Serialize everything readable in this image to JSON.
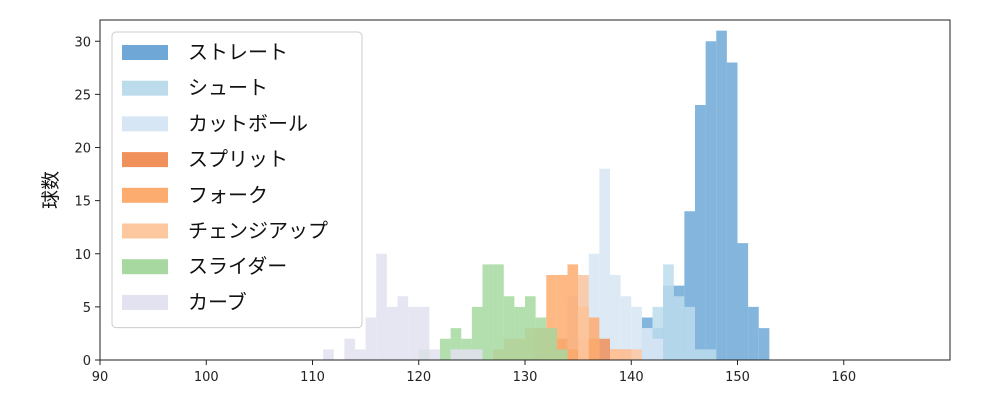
{
  "chart_data": {
    "type": "bar",
    "subtype": "overlapping-histogram",
    "title": "",
    "xlabel": "",
    "ylabel": "球数",
    "xlim": [
      90,
      170
    ],
    "ylim": [
      0,
      32
    ],
    "x_ticks": [
      90,
      100,
      110,
      120,
      130,
      140,
      150,
      160
    ],
    "y_ticks": [
      0,
      5,
      10,
      15,
      20,
      25,
      30
    ],
    "grid": false,
    "legend_position": "top-left",
    "bin_width": 1,
    "series": [
      {
        "name": "ストレート",
        "color": "#6fa8d6",
        "bins": [
          [
            141,
            4
          ],
          [
            142,
            3
          ],
          [
            143,
            7
          ],
          [
            144,
            7
          ],
          [
            145,
            14
          ],
          [
            146,
            24
          ],
          [
            147,
            30
          ],
          [
            148,
            31
          ],
          [
            149,
            28
          ],
          [
            150,
            11
          ],
          [
            151,
            5
          ],
          [
            152,
            3
          ]
        ]
      },
      {
        "name": "シュート",
        "color": "#bcdcec",
        "bins": [
          [
            137,
            2
          ],
          [
            138,
            1
          ],
          [
            141,
            3
          ],
          [
            142,
            5
          ],
          [
            143,
            9
          ],
          [
            144,
            6
          ],
          [
            145,
            5
          ],
          [
            146,
            1
          ],
          [
            147,
            1
          ]
        ]
      },
      {
        "name": "カットボール",
        "color": "#d7e6f5",
        "bins": [
          [
            134,
            6
          ],
          [
            135,
            8
          ],
          [
            136,
            10
          ],
          [
            137,
            18
          ],
          [
            138,
            8
          ],
          [
            139,
            6
          ],
          [
            140,
            5
          ],
          [
            141,
            3
          ],
          [
            142,
            2
          ]
        ]
      },
      {
        "name": "スプリット",
        "color": "#f0905a",
        "bins": [
          [
            131,
            3
          ],
          [
            132,
            3
          ],
          [
            133,
            2
          ],
          [
            134,
            1
          ],
          [
            135,
            2
          ],
          [
            136,
            2
          ],
          [
            137,
            2
          ],
          [
            138,
            1
          ],
          [
            139,
            1
          ]
        ]
      },
      {
        "name": "フォーク",
        "color": "#fdac6f",
        "bins": [
          [
            127,
            1
          ],
          [
            128,
            2
          ],
          [
            129,
            2
          ],
          [
            130,
            3
          ],
          [
            131,
            3
          ],
          [
            132,
            8
          ],
          [
            133,
            8
          ],
          [
            134,
            9
          ],
          [
            135,
            5
          ],
          [
            136,
            4
          ],
          [
            138,
            1
          ]
        ]
      },
      {
        "name": "チェンジアップ",
        "color": "#fdc7a0",
        "bins": [
          [
            135,
            8
          ],
          [
            138,
            1
          ],
          [
            139,
            1
          ],
          [
            140,
            1
          ]
        ]
      },
      {
        "name": "スライダー",
        "color": "#a6d8a0",
        "bins": [
          [
            120,
            1
          ],
          [
            122,
            2
          ],
          [
            123,
            3
          ],
          [
            124,
            2
          ],
          [
            125,
            5
          ],
          [
            126,
            9
          ],
          [
            127,
            9
          ],
          [
            128,
            6
          ],
          [
            129,
            5
          ],
          [
            130,
            6
          ],
          [
            131,
            4
          ],
          [
            132,
            3
          ],
          [
            133,
            1
          ]
        ]
      },
      {
        "name": "カーブ",
        "color": "#e2e2f0",
        "bins": [
          [
            111,
            1
          ],
          [
            113,
            2
          ],
          [
            114,
            1
          ],
          [
            115,
            4
          ],
          [
            116,
            10
          ],
          [
            117,
            5
          ],
          [
            118,
            6
          ],
          [
            119,
            5
          ],
          [
            120,
            5
          ],
          [
            121,
            1
          ],
          [
            123,
            1
          ],
          [
            124,
            1
          ],
          [
            125,
            1
          ]
        ]
      }
    ]
  }
}
